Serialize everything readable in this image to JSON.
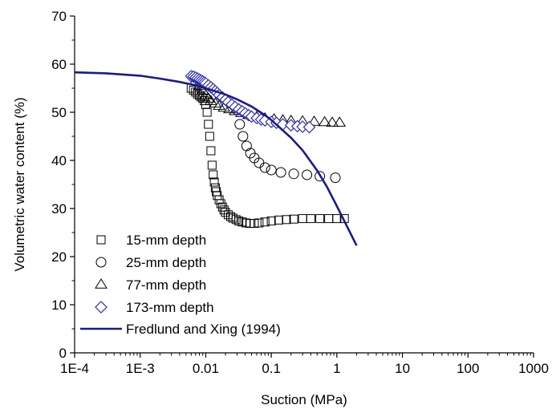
{
  "chart_data": {
    "type": "scatter",
    "title": "",
    "xlabel": "Suction (MPa)",
    "ylabel": "Volumetric water content (%)",
    "x_scale": "log",
    "xlim": [
      0.0001,
      1000
    ],
    "ylim": [
      0,
      70
    ],
    "x_ticks": [
      "1E-4",
      "1E-3",
      "0.01",
      "0.1",
      "1",
      "10",
      "100",
      "1000"
    ],
    "y_ticks": [
      "0",
      "10",
      "20",
      "30",
      "40",
      "50",
      "60",
      "70"
    ],
    "grid": false,
    "legend_position": "bottom-left",
    "series": [
      {
        "name": "15-mm depth",
        "marker": "square",
        "color": "#000000",
        "points": [
          [
            0.006,
            55.0
          ],
          [
            0.0065,
            54.6
          ],
          [
            0.007,
            54.2
          ],
          [
            0.0075,
            53.8
          ],
          [
            0.008,
            53.5
          ],
          [
            0.0085,
            53.2
          ],
          [
            0.009,
            52.9
          ],
          [
            0.0095,
            52.4
          ],
          [
            0.01,
            51.6
          ],
          [
            0.0105,
            50.0
          ],
          [
            0.011,
            47.5
          ],
          [
            0.0115,
            45.0
          ],
          [
            0.012,
            42.0
          ],
          [
            0.0125,
            39.0
          ],
          [
            0.013,
            37.0
          ],
          [
            0.0135,
            35.5
          ],
          [
            0.014,
            34.3
          ],
          [
            0.0145,
            33.5
          ],
          [
            0.015,
            32.7
          ],
          [
            0.016,
            31.8
          ],
          [
            0.017,
            31.0
          ],
          [
            0.018,
            30.3
          ],
          [
            0.019,
            29.7
          ],
          [
            0.02,
            29.2
          ],
          [
            0.022,
            28.7
          ],
          [
            0.024,
            28.3
          ],
          [
            0.026,
            28.0
          ],
          [
            0.029,
            27.7
          ],
          [
            0.032,
            27.4
          ],
          [
            0.036,
            27.2
          ],
          [
            0.041,
            27.0
          ],
          [
            0.047,
            26.9
          ],
          [
            0.055,
            26.9
          ],
          [
            0.065,
            27.0
          ],
          [
            0.08,
            27.2
          ],
          [
            0.1,
            27.4
          ],
          [
            0.13,
            27.6
          ],
          [
            0.17,
            27.7
          ],
          [
            0.22,
            27.8
          ],
          [
            0.3,
            27.9
          ],
          [
            0.4,
            27.9
          ],
          [
            0.55,
            27.9
          ],
          [
            0.75,
            27.9
          ],
          [
            1.0,
            27.9
          ],
          [
            1.3,
            27.9
          ]
        ]
      },
      {
        "name": "25-mm depth",
        "marker": "circle",
        "color": "#000000",
        "points": [
          [
            0.03,
            50.5
          ],
          [
            0.033,
            47.5
          ],
          [
            0.037,
            45.0
          ],
          [
            0.042,
            43.0
          ],
          [
            0.048,
            41.5
          ],
          [
            0.055,
            40.5
          ],
          [
            0.065,
            39.5
          ],
          [
            0.08,
            38.5
          ],
          [
            0.1,
            38.0
          ],
          [
            0.14,
            37.5
          ],
          [
            0.22,
            37.2
          ],
          [
            0.35,
            37.0
          ],
          [
            0.55,
            36.7
          ],
          [
            0.95,
            36.4
          ]
        ]
      },
      {
        "name": "77-mm depth",
        "marker": "triangle",
        "color": "#000000",
        "points": [
          [
            0.007,
            56.5
          ],
          [
            0.008,
            55.5
          ],
          [
            0.009,
            54.5
          ],
          [
            0.01,
            53.5
          ],
          [
            0.011,
            52.8
          ],
          [
            0.012,
            52.3
          ],
          [
            0.014,
            51.8
          ],
          [
            0.016,
            51.3
          ],
          [
            0.019,
            50.9
          ],
          [
            0.023,
            50.6
          ],
          [
            0.028,
            50.2
          ],
          [
            0.035,
            49.8
          ],
          [
            0.045,
            49.4
          ],
          [
            0.06,
            49.0
          ],
          [
            0.08,
            48.7
          ],
          [
            0.11,
            48.5
          ],
          [
            0.15,
            48.3
          ],
          [
            0.2,
            48.2
          ],
          [
            0.3,
            48.1
          ],
          [
            0.45,
            48.0
          ],
          [
            0.65,
            47.9
          ],
          [
            0.85,
            47.8
          ],
          [
            1.1,
            47.8
          ]
        ]
      },
      {
        "name": "173-mm depth",
        "marker": "diamond",
        "color": "#2E2EB0",
        "points": [
          [
            0.006,
            57.5
          ],
          [
            0.0065,
            57.4
          ],
          [
            0.007,
            57.2
          ],
          [
            0.0075,
            57.0
          ],
          [
            0.008,
            56.8
          ],
          [
            0.0085,
            56.6
          ],
          [
            0.009,
            56.4
          ],
          [
            0.0095,
            56.2
          ],
          [
            0.01,
            56.0
          ],
          [
            0.011,
            55.6
          ],
          [
            0.012,
            55.2
          ],
          [
            0.013,
            54.8
          ],
          [
            0.014,
            54.4
          ],
          [
            0.015,
            54.0
          ],
          [
            0.016,
            53.6
          ],
          [
            0.018,
            53.1
          ],
          [
            0.02,
            52.6
          ],
          [
            0.022,
            52.1
          ],
          [
            0.025,
            51.6
          ],
          [
            0.028,
            51.1
          ],
          [
            0.032,
            50.6
          ],
          [
            0.036,
            50.2
          ],
          [
            0.04,
            49.8
          ],
          [
            0.045,
            49.4
          ],
          [
            0.05,
            49.1
          ],
          [
            0.06,
            48.8
          ],
          [
            0.07,
            48.5
          ],
          [
            0.08,
            48.3
          ],
          [
            0.1,
            48.0
          ],
          [
            0.12,
            47.8
          ],
          [
            0.15,
            47.5
          ],
          [
            0.2,
            47.3
          ],
          [
            0.25,
            47.1
          ],
          [
            0.3,
            47.0
          ],
          [
            0.38,
            46.9
          ]
        ]
      },
      {
        "name": "Fredlund and Xing (1994)",
        "marker": "line",
        "color": "#1A1A8C",
        "points": [
          [
            0.0001,
            58.3
          ],
          [
            0.0003,
            58.1
          ],
          [
            0.001,
            57.6
          ],
          [
            0.002,
            57.0
          ],
          [
            0.004,
            56.3
          ],
          [
            0.007,
            55.6
          ],
          [
            0.01,
            55.0
          ],
          [
            0.02,
            53.7
          ],
          [
            0.03,
            52.7
          ],
          [
            0.05,
            51.2
          ],
          [
            0.08,
            49.4
          ],
          [
            0.1,
            48.4
          ],
          [
            0.2,
            44.7
          ],
          [
            0.3,
            42.1
          ],
          [
            0.5,
            37.9
          ],
          [
            0.7,
            34.6
          ],
          [
            1.0,
            30.5
          ],
          [
            1.5,
            25.7
          ],
          [
            2.0,
            22.3
          ]
        ]
      }
    ]
  }
}
